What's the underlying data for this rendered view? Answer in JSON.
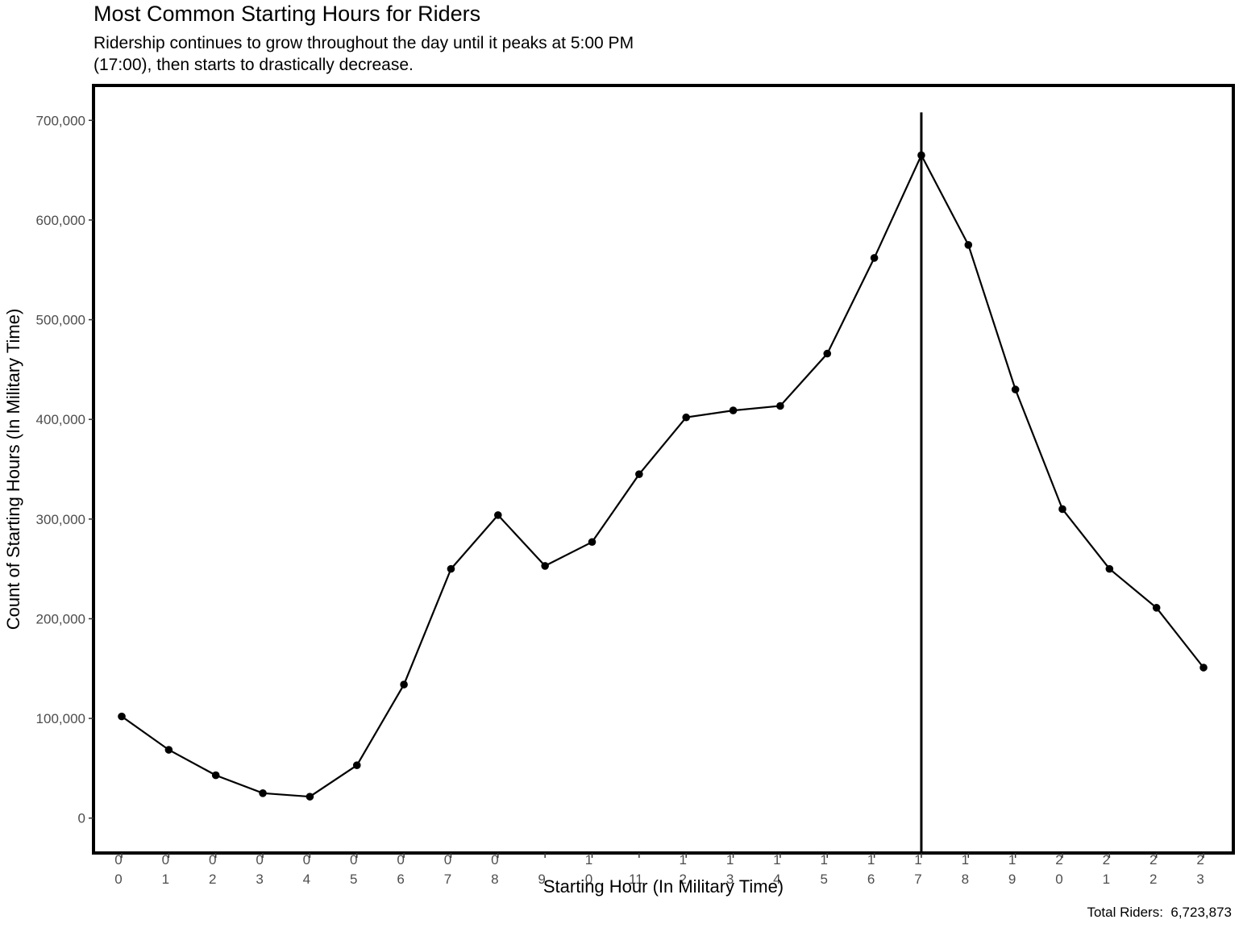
{
  "chart_data": {
    "type": "line",
    "title": "Most Common Starting Hours for Riders",
    "subtitle": "Ridership continues to grow throughout the day until it peaks at 5:00 PM (17:00), then starts to drastically decrease.",
    "xlabel": "Starting Hour (In Military Time)",
    "ylabel": "Count of Starting Hours (In Military Time)",
    "caption": "Total Riders:  6,723,873",
    "categories": [
      "00",
      "01",
      "02",
      "03",
      "04",
      "05",
      "06",
      "07",
      "08",
      "09",
      "10",
      "11",
      "12",
      "13",
      "14",
      "15",
      "16",
      "17",
      "18",
      "19",
      "20",
      "21",
      "22",
      "23"
    ],
    "tick_lines": [
      [
        "0",
        "0"
      ],
      [
        "0",
        "1"
      ],
      [
        "0",
        "2"
      ],
      [
        "0",
        "3"
      ],
      [
        "0",
        "4"
      ],
      [
        "0",
        "5"
      ],
      [
        "0",
        "6"
      ],
      [
        "0",
        "7"
      ],
      [
        "0",
        "8"
      ],
      [
        "9",
        ""
      ],
      [
        "1",
        "0"
      ],
      [
        "11",
        ""
      ],
      [
        "1",
        "2"
      ],
      [
        "1",
        "3"
      ],
      [
        "1",
        "4"
      ],
      [
        "1",
        "5"
      ],
      [
        "1",
        "6"
      ],
      [
        "1",
        "7"
      ],
      [
        "1",
        "8"
      ],
      [
        "1",
        "9"
      ],
      [
        "2",
        "0"
      ],
      [
        "2",
        "1"
      ],
      [
        "2",
        "2"
      ],
      [
        "2",
        "3"
      ]
    ],
    "values": [
      102000,
      68500,
      43000,
      25000,
      21500,
      53000,
      134000,
      250000,
      304000,
      253000,
      277000,
      345000,
      402000,
      409000,
      413500,
      466000,
      562000,
      665000,
      575000,
      430000,
      310000,
      250000,
      211000,
      151000
    ],
    "ylim": [
      -35000,
      735000
    ],
    "yticks": [
      0,
      100000,
      200000,
      300000,
      400000,
      500000,
      600000,
      700000
    ],
    "ytick_labels": [
      "0",
      "100,000",
      "200,000",
      "300,000",
      "400,000",
      "500,000",
      "600,000",
      "700,000"
    ],
    "vline_x": "17",
    "vline_y_top": 708000,
    "grid": false,
    "legend": "none",
    "line_color": "#000000",
    "point_color": "#000000"
  }
}
